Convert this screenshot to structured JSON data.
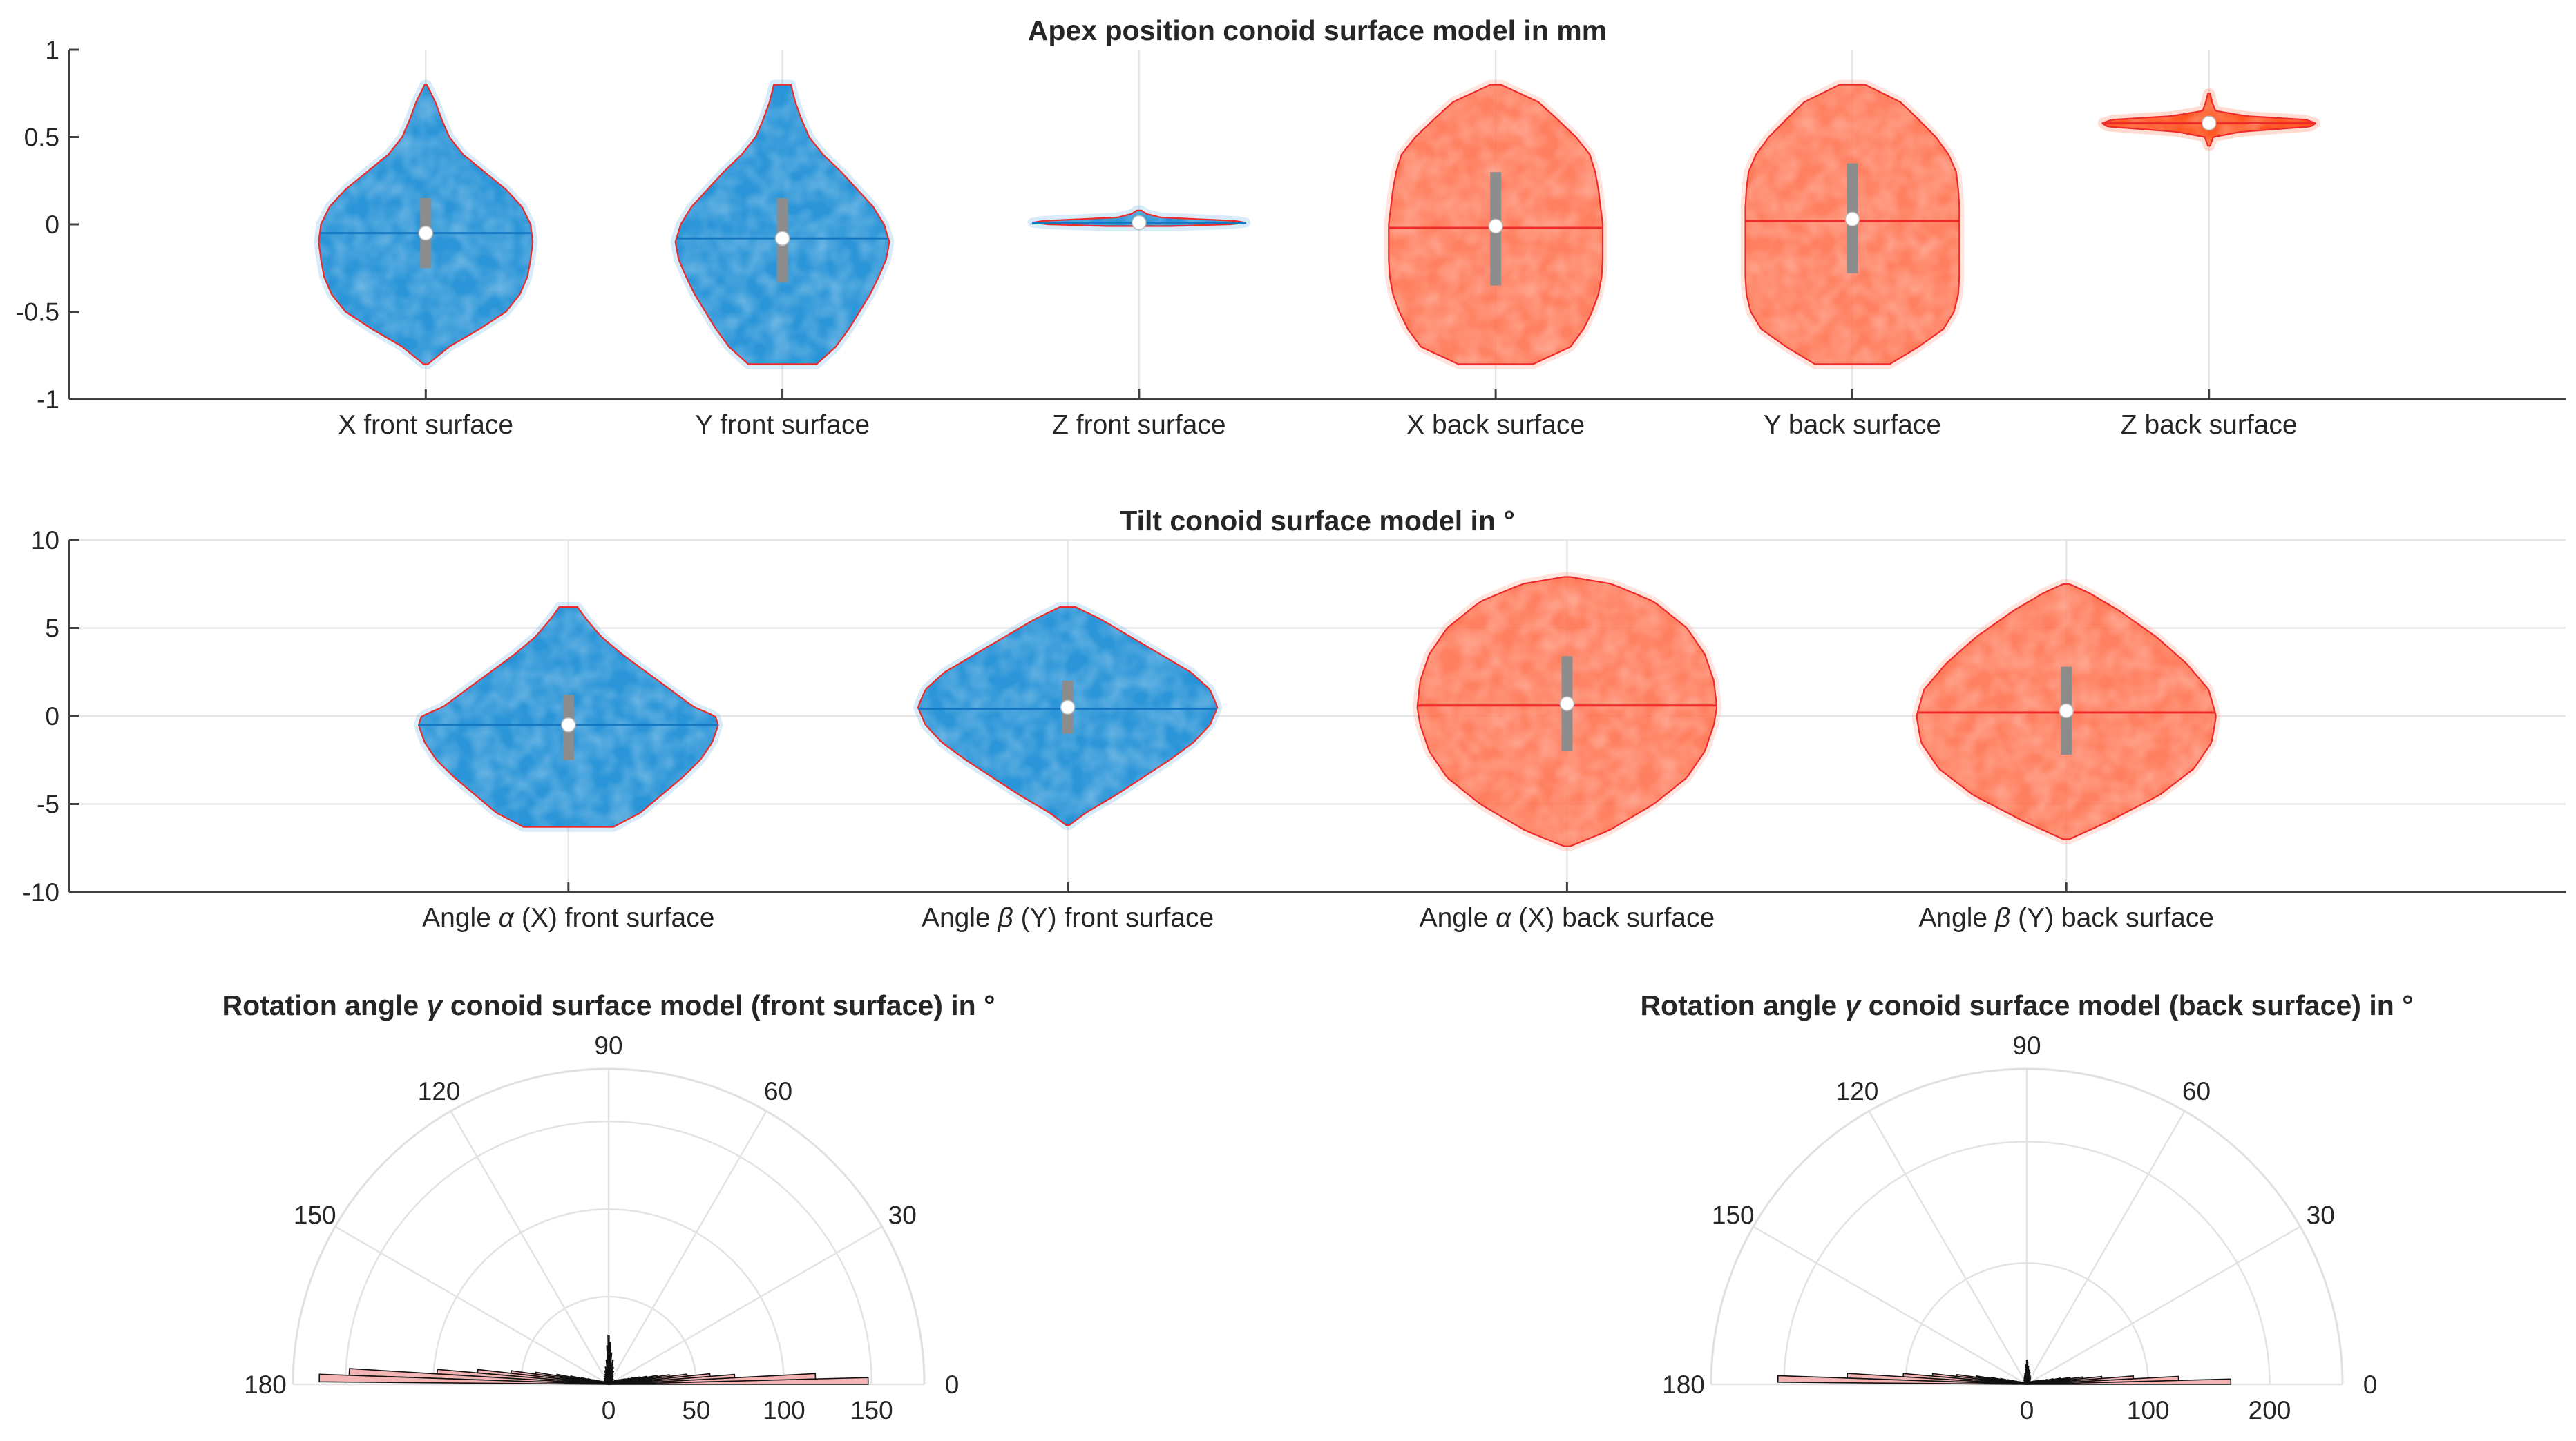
{
  "colors": {
    "front": "#1f8fd6",
    "front_alt": "#1577c2",
    "back": "#ff6a45",
    "back_dark": "#ff3d00",
    "outline": "#ee2a2a",
    "box": "#8c8c8c",
    "median": "#ffffff",
    "rose_fill": "#f4b4b4",
    "grid": "#e6e6e6"
  },
  "chart_data": [
    {
      "type": "violin",
      "title": "Apex position conoid surface model in mm",
      "ylim": [
        -1,
        1
      ],
      "yticks": [
        -1,
        -0.5,
        0,
        0.5,
        1
      ],
      "ytick_labels": [
        "-1",
        "-0.5",
        "0",
        "0.5",
        "1"
      ],
      "grid": "vertical",
      "series": [
        {
          "name": "X front surface",
          "group": "front",
          "min": -0.8,
          "max": 0.8,
          "median": -0.05,
          "mean": -0.05,
          "q1": -0.25,
          "q3": 0.15,
          "max_halfwidth_units": 0.3,
          "profile": [
            [
              -0.8,
              0.02
            ],
            [
              -0.7,
              0.22
            ],
            [
              -0.6,
              0.5
            ],
            [
              -0.5,
              0.75
            ],
            [
              -0.4,
              0.88
            ],
            [
              -0.3,
              0.95
            ],
            [
              -0.2,
              0.98
            ],
            [
              -0.1,
              1.0
            ],
            [
              0,
              0.98
            ],
            [
              0.1,
              0.9
            ],
            [
              0.2,
              0.75
            ],
            [
              0.3,
              0.55
            ],
            [
              0.4,
              0.35
            ],
            [
              0.5,
              0.22
            ],
            [
              0.6,
              0.15
            ],
            [
              0.7,
              0.09
            ],
            [
              0.8,
              0.01
            ]
          ]
        },
        {
          "name": "Y front surface",
          "group": "front",
          "min": -0.8,
          "max": 0.8,
          "median": -0.08,
          "mean": -0.08,
          "q1": -0.33,
          "q3": 0.15,
          "max_halfwidth_units": 0.3,
          "profile": [
            [
              -0.8,
              0.32
            ],
            [
              -0.7,
              0.5
            ],
            [
              -0.6,
              0.62
            ],
            [
              -0.5,
              0.72
            ],
            [
              -0.4,
              0.82
            ],
            [
              -0.3,
              0.9
            ],
            [
              -0.2,
              0.97
            ],
            [
              -0.1,
              1.0
            ],
            [
              0,
              0.95
            ],
            [
              0.1,
              0.85
            ],
            [
              0.2,
              0.7
            ],
            [
              0.3,
              0.55
            ],
            [
              0.4,
              0.38
            ],
            [
              0.5,
              0.25
            ],
            [
              0.6,
              0.18
            ],
            [
              0.7,
              0.12
            ],
            [
              0.8,
              0.08
            ]
          ]
        },
        {
          "name": "Z front surface",
          "group": "front",
          "min": -0.01,
          "max": 0.08,
          "median": 0.01,
          "mean": 0.01,
          "q1": 0.0,
          "q3": 0.02,
          "max_halfwidth_units": 0.3,
          "profile": [
            [
              -0.01,
              0.3
            ],
            [
              0,
              0.85
            ],
            [
              0.01,
              1.0
            ],
            [
              0.02,
              0.9
            ],
            [
              0.04,
              0.2
            ],
            [
              0.06,
              0.07
            ],
            [
              0.08,
              0.02
            ]
          ]
        },
        {
          "name": "X back surface",
          "group": "back",
          "min": -0.8,
          "max": 0.8,
          "median": -0.01,
          "mean": -0.02,
          "q1": -0.35,
          "q3": 0.3,
          "max_halfwidth_units": 0.3,
          "profile": [
            [
              -0.8,
              0.35
            ],
            [
              -0.7,
              0.7
            ],
            [
              -0.6,
              0.82
            ],
            [
              -0.5,
              0.9
            ],
            [
              -0.4,
              0.96
            ],
            [
              -0.3,
              0.99
            ],
            [
              -0.2,
              1.0
            ],
            [
              -0.1,
              1.0
            ],
            [
              0,
              1.0
            ],
            [
              0.1,
              0.98
            ],
            [
              0.2,
              0.96
            ],
            [
              0.3,
              0.93
            ],
            [
              0.4,
              0.88
            ],
            [
              0.5,
              0.75
            ],
            [
              0.6,
              0.58
            ],
            [
              0.7,
              0.4
            ],
            [
              0.8,
              0.05
            ]
          ]
        },
        {
          "name": "Y back surface",
          "group": "back",
          "min": -0.8,
          "max": 0.8,
          "median": 0.03,
          "mean": 0.02,
          "q1": -0.28,
          "q3": 0.35,
          "max_halfwidth_units": 0.3,
          "profile": [
            [
              -0.8,
              0.35
            ],
            [
              -0.7,
              0.62
            ],
            [
              -0.6,
              0.85
            ],
            [
              -0.5,
              0.95
            ],
            [
              -0.4,
              0.99
            ],
            [
              -0.3,
              1.0
            ],
            [
              -0.2,
              1.0
            ],
            [
              -0.1,
              1.0
            ],
            [
              0,
              1.0
            ],
            [
              0.1,
              1.0
            ],
            [
              0.2,
              0.99
            ],
            [
              0.3,
              0.97
            ],
            [
              0.4,
              0.9
            ],
            [
              0.5,
              0.78
            ],
            [
              0.6,
              0.62
            ],
            [
              0.7,
              0.45
            ],
            [
              0.8,
              0.12
            ]
          ]
        },
        {
          "name": "Z back surface",
          "group": "back_dark",
          "min": 0.45,
          "max": 0.75,
          "median": 0.58,
          "mean": 0.58,
          "q1": 0.56,
          "q3": 0.6,
          "max_halfwidth_units": 0.3,
          "profile": [
            [
              0.45,
              0.01
            ],
            [
              0.5,
              0.04
            ],
            [
              0.53,
              0.3
            ],
            [
              0.56,
              0.95
            ],
            [
              0.58,
              1.0
            ],
            [
              0.6,
              0.9
            ],
            [
              0.62,
              0.35
            ],
            [
              0.65,
              0.06
            ],
            [
              0.7,
              0.03
            ],
            [
              0.75,
              0.01
            ]
          ]
        }
      ]
    },
    {
      "type": "violin",
      "title": "Tilt conoid surface model in °",
      "ylim": [
        -10,
        10
      ],
      "yticks": [
        -10,
        -5,
        0,
        5,
        10
      ],
      "ytick_labels": [
        "-10",
        "-5",
        "0",
        "5",
        "10"
      ],
      "grid": "both",
      "series": [
        {
          "name_parts": [
            "Angle ",
            "α",
            " (X) front surface"
          ],
          "group": "front",
          "min": -6.3,
          "max": 6.2,
          "median": -0.5,
          "mean": -0.5,
          "q1": -2.5,
          "q3": 1.2,
          "max_halfwidth_units": 0.3,
          "profile": [
            [
              -6.3,
              0.3
            ],
            [
              -5.5,
              0.48
            ],
            [
              -4.5,
              0.62
            ],
            [
              -3.5,
              0.76
            ],
            [
              -2.5,
              0.88
            ],
            [
              -1.5,
              0.96
            ],
            [
              -0.5,
              1.0
            ],
            [
              0,
              0.98
            ],
            [
              0.5,
              0.84
            ],
            [
              1.5,
              0.68
            ],
            [
              2.5,
              0.52
            ],
            [
              3.5,
              0.36
            ],
            [
              4.5,
              0.22
            ],
            [
              5.5,
              0.12
            ],
            [
              6.2,
              0.06
            ]
          ]
        },
        {
          "name_parts": [
            "Angle ",
            "β",
            " (Y) front surface"
          ],
          "group": "front",
          "min": -6.2,
          "max": 6.2,
          "median": 0.5,
          "mean": 0.4,
          "q1": -1.0,
          "q3": 2.0,
          "max_halfwidth_units": 0.3,
          "profile": [
            [
              -6.2,
              0.01
            ],
            [
              -5.5,
              0.12
            ],
            [
              -4.5,
              0.32
            ],
            [
              -3.5,
              0.5
            ],
            [
              -2.5,
              0.68
            ],
            [
              -1.5,
              0.84
            ],
            [
              -0.5,
              0.95
            ],
            [
              0.5,
              1.0
            ],
            [
              1.5,
              0.95
            ],
            [
              2.5,
              0.82
            ],
            [
              3.5,
              0.62
            ],
            [
              4.5,
              0.42
            ],
            [
              5.5,
              0.22
            ],
            [
              6.2,
              0.05
            ]
          ]
        },
        {
          "name_parts": [
            "Angle ",
            "α",
            " (X) back surface"
          ],
          "group": "back",
          "min": -7.4,
          "max": 7.9,
          "median": 0.7,
          "mean": 0.6,
          "q1": -2.0,
          "q3": 3.4,
          "max_halfwidth_units": 0.3,
          "profile": [
            [
              -7.4,
              0.02
            ],
            [
              -6.5,
              0.28
            ],
            [
              -5,
              0.58
            ],
            [
              -3.5,
              0.8
            ],
            [
              -2,
              0.92
            ],
            [
              -0.5,
              0.98
            ],
            [
              0.5,
              1.0
            ],
            [
              2,
              0.98
            ],
            [
              3.5,
              0.92
            ],
            [
              5,
              0.8
            ],
            [
              6.5,
              0.58
            ],
            [
              7.5,
              0.3
            ],
            [
              7.9,
              0.02
            ]
          ]
        },
        {
          "name_parts": [
            "Angle ",
            "β",
            " (Y) back surface"
          ],
          "group": "back",
          "min": -7.0,
          "max": 7.5,
          "median": 0.3,
          "mean": 0.2,
          "q1": -2.2,
          "q3": 2.8,
          "max_halfwidth_units": 0.3,
          "profile": [
            [
              -7.0,
              0.02
            ],
            [
              -6,
              0.28
            ],
            [
              -4.5,
              0.62
            ],
            [
              -3,
              0.85
            ],
            [
              -1.5,
              0.97
            ],
            [
              0,
              1.0
            ],
            [
              1.5,
              0.95
            ],
            [
              3,
              0.8
            ],
            [
              4.5,
              0.6
            ],
            [
              6,
              0.35
            ],
            [
              7,
              0.15
            ],
            [
              7.5,
              0.02
            ]
          ]
        }
      ]
    },
    {
      "type": "polar_histogram",
      "title_parts": [
        "Rotation angle ",
        "γ",
        " conoid surface model (front surface) in °"
      ],
      "theta_range_deg": [
        0,
        180
      ],
      "theta_tick_labels": [
        "0",
        "30",
        "60",
        "90",
        "120",
        "150",
        "180"
      ],
      "r_max": 180,
      "r_ticks": [
        0,
        50,
        100,
        150
      ],
      "r_tick_labels": [
        "0",
        "50",
        "100",
        "150"
      ],
      "bin_width_deg": 1.5,
      "bin_centers_deg": [
        0.75,
        2.25,
        3.75,
        5.25,
        6.75,
        8.25,
        9.75,
        11.25,
        12.75,
        14.25,
        15.75,
        17.25,
        18.75,
        20.25,
        21.75,
        23.25,
        24.75,
        26.25,
        27.75,
        29.25,
        30.75,
        32.25,
        35,
        40,
        45,
        50,
        55,
        60,
        65,
        70,
        75,
        80,
        85,
        88,
        90,
        92,
        95,
        100,
        105,
        110,
        115,
        120,
        125,
        130,
        135,
        140,
        145,
        150,
        155,
        157.75,
        159.25,
        160.75,
        162.25,
        163.75,
        165.25,
        166.75,
        168.25,
        169.75,
        171.25,
        172.75,
        174.25,
        175.75,
        177.25,
        178.75
      ],
      "counts": [
        148,
        118,
        72,
        58,
        45,
        35,
        28,
        22,
        18,
        15,
        12,
        10,
        9,
        8,
        7,
        6,
        6,
        5,
        5,
        4,
        4,
        3,
        3,
        3,
        3,
        4,
        4,
        5,
        6,
        8,
        10,
        14,
        18,
        24,
        28,
        22,
        14,
        10,
        8,
        6,
        5,
        4,
        4,
        3,
        3,
        3,
        3,
        3,
        4,
        4,
        5,
        6,
        7,
        9,
        12,
        16,
        22,
        30,
        42,
        56,
        75,
        98,
        148,
        165
      ]
    },
    {
      "type": "polar_histogram",
      "title_parts": [
        "Rotation angle ",
        "γ",
        " conoid surface model (back surface) in °"
      ],
      "theta_range_deg": [
        0,
        180
      ],
      "theta_tick_labels": [
        "0",
        "30",
        "60",
        "90",
        "120",
        "150",
        "180"
      ],
      "r_max": 260,
      "r_ticks": [
        0,
        100,
        200
      ],
      "r_tick_labels": [
        "0",
        "100",
        "200"
      ],
      "bin_width_deg": 1.5,
      "bin_centers_deg": [
        0.75,
        2.25,
        3.75,
        5.25,
        6.75,
        8.25,
        9.75,
        11.25,
        12.75,
        14.25,
        15.75,
        17.25,
        18.75,
        20.25,
        21.75,
        23.25,
        24.75,
        26.25,
        27.75,
        29.25,
        30.75,
        32.25,
        35,
        40,
        45,
        50,
        55,
        60,
        65,
        70,
        75,
        80,
        85,
        88,
        90,
        92,
        95,
        100,
        105,
        110,
        115,
        120,
        125,
        130,
        135,
        140,
        145,
        150,
        155,
        157.75,
        159.25,
        160.75,
        162.25,
        163.75,
        165.25,
        166.75,
        168.25,
        169.75,
        171.25,
        172.75,
        174.25,
        175.75,
        177.25,
        178.75
      ],
      "counts": [
        168,
        125,
        88,
        62,
        46,
        36,
        28,
        22,
        17,
        14,
        12,
        10,
        9,
        8,
        7,
        6,
        6,
        5,
        5,
        4,
        4,
        4,
        3,
        3,
        3,
        4,
        5,
        6,
        7,
        8,
        10,
        12,
        15,
        18,
        20,
        16,
        12,
        9,
        7,
        6,
        5,
        4,
        4,
        3,
        3,
        3,
        3,
        3,
        4,
        4,
        5,
        6,
        7,
        9,
        12,
        16,
        22,
        30,
        42,
        58,
        78,
        102,
        148,
        205
      ]
    }
  ]
}
